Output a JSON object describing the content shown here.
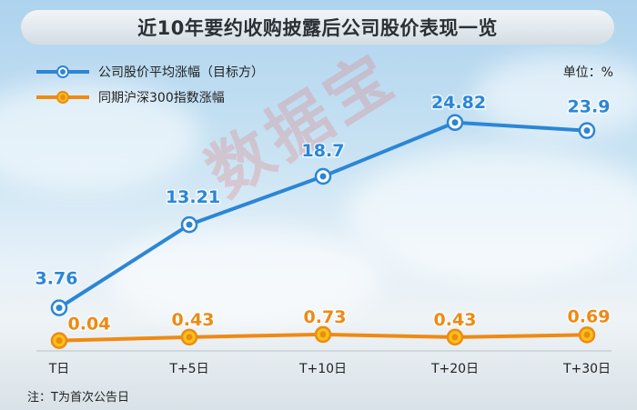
{
  "title": "近10年要约收购披露后公司股价表现一览",
  "unit_label": "单位：%",
  "footnote": "注：T为首次公告日",
  "watermark": "数据宝",
  "colors": {
    "series_blue": "#2b86d6",
    "series_orange": "#ef8a12",
    "tick_text": "#222222"
  },
  "chart_data": {
    "type": "line",
    "categories": [
      "T日",
      "T+5日",
      "T+10日",
      "T+20日",
      "T+30日"
    ],
    "series": [
      {
        "name": "公司股价平均涨幅（目标方）",
        "values": [
          3.76,
          13.21,
          18.7,
          24.82,
          23.9
        ],
        "labels": [
          "3.76",
          "13.21",
          "18.7",
          "24.82",
          "23.9"
        ]
      },
      {
        "name": "同期沪深300指数涨幅",
        "values": [
          0.04,
          0.43,
          0.73,
          0.43,
          0.69
        ],
        "labels": [
          "0.04",
          "0.43",
          "0.73",
          "0.43",
          "0.69"
        ]
      }
    ],
    "ylim": [
      0,
      28
    ],
    "grid": false,
    "legend_position": "top-left"
  }
}
